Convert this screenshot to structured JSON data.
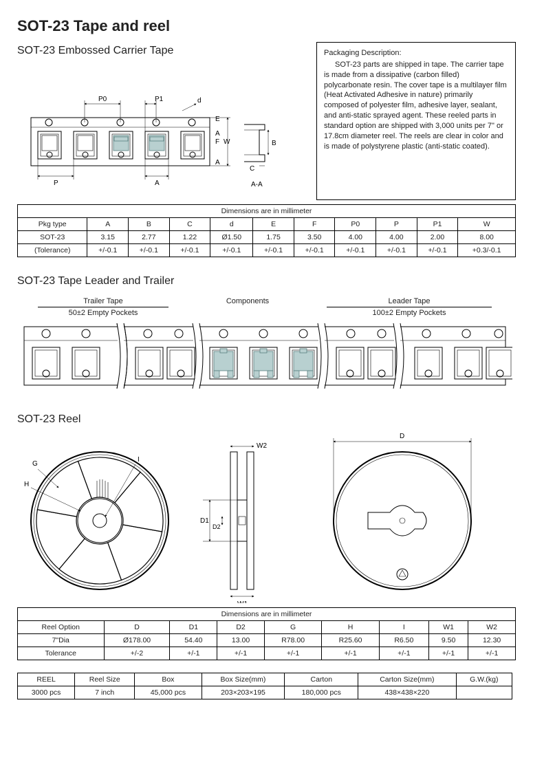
{
  "title": "SOT-23 Tape and reel",
  "sec1_title": "SOT-23  Embossed Carrier Tape",
  "desc": {
    "heading": "Packaging Description:",
    "body": "SOT-23 parts are shipped in tape. The carrier tape is made from a dissipative (carbon filled) polycarbonate resin. The cover tape is a multilayer film (Heat Activated Adhesive in nature) primarily composed of polyester film, adhesive layer, sealant, and anti-static sprayed agent. These reeled parts in standard option are shipped with 3,000 units per 7\" or 17.8cm diameter reel. The reels are clear in color and is made of polystyrene plastic (anti-static coated)."
  },
  "tape_labels": {
    "P0": "P0",
    "P1": "P1",
    "P": "P",
    "A": "A",
    "A2": "A",
    "A3": "A",
    "E": "E",
    "F": "F",
    "W": "W",
    "B": "B",
    "C": "C",
    "d": "d",
    "AA": "A-A"
  },
  "table1": {
    "caption": "Dimensions are in millimeter",
    "headers": [
      "Pkg type",
      "A",
      "B",
      "C",
      "d",
      "E",
      "F",
      "P0",
      "P",
      "P1",
      "W"
    ],
    "row1": [
      "SOT-23",
      "3.15",
      "2.77",
      "1.22",
      "Ø1.50",
      "1.75",
      "3.50",
      "4.00",
      "4.00",
      "2.00",
      "8.00"
    ],
    "row2": [
      "(Tolerance)",
      "+/-0.1",
      "+/-0.1",
      "+/-0.1",
      "+/-0.1",
      "+/-0.1",
      "+/-0.1",
      "+/-0.1",
      "+/-0.1",
      "+/-0.1",
      "+0.3/-0.1"
    ]
  },
  "sec2_title": "SOT-23  Tape Leader and Trailer",
  "leader": {
    "trailer_top": "Trailer Tape",
    "trailer_bot": "50±2 Empty Pockets",
    "center": "Components",
    "leader_top": "Leader Tape",
    "leader_bot": "100±2 Empty Pockets"
  },
  "sec3_title": "SOT-23 Reel",
  "reel_labels": {
    "G": "G",
    "H": "H",
    "I": "I",
    "D": "D",
    "D1": "D1",
    "D2": "D2",
    "W1": "W1",
    "W2": "W2"
  },
  "table2": {
    "caption": "Dimensions are in millimeter",
    "headers": [
      "Reel Option",
      "D",
      "D1",
      "D2",
      "G",
      "H",
      "I",
      "W1",
      "W2"
    ],
    "row1": [
      "7\"Dia",
      "Ø178.00",
      "54.40",
      "13.00",
      "R78.00",
      "R25.60",
      "R6.50",
      "9.50",
      "12.30"
    ],
    "row2": [
      "Tolerance",
      "+/-2",
      "+/-1",
      "+/-1",
      "+/-1",
      "+/-1",
      "+/-1",
      "+/-1",
      "+/-1"
    ]
  },
  "table3": {
    "headers": [
      "REEL",
      "Reel Size",
      "Box",
      "Box Size(mm)",
      "Carton",
      "Carton Size(mm)",
      "G.W.(kg)"
    ],
    "row1": [
      "3000 pcs",
      "7 inch",
      "45,000 pcs",
      "203×203×195",
      "180,000 pcs",
      "438×438×220",
      ""
    ]
  },
  "colors": {
    "component_fill": "#b8d0d0",
    "component_stroke": "#5a8080",
    "line": "#000000"
  }
}
